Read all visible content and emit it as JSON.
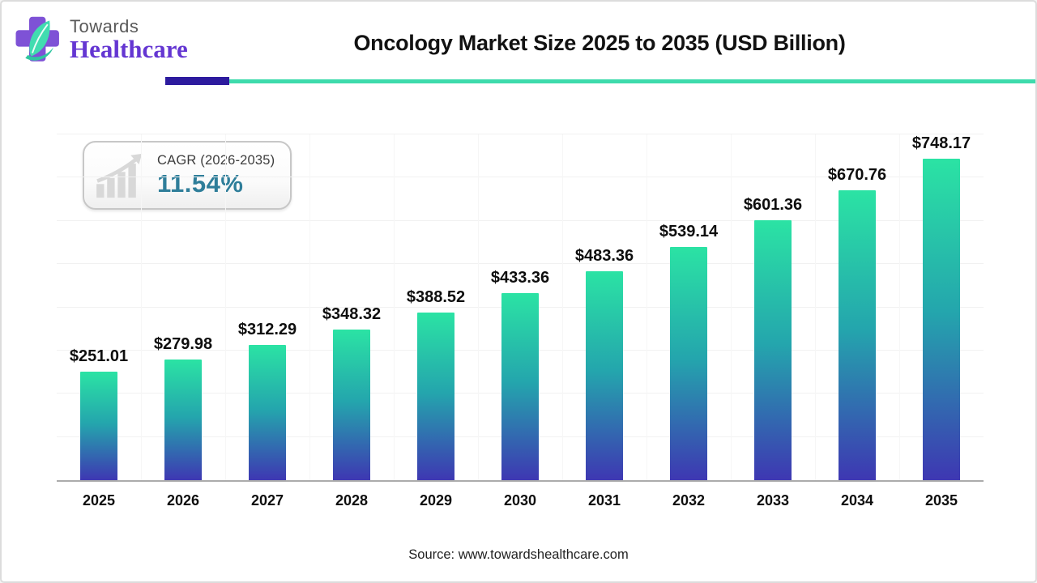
{
  "logo": {
    "brand_top": "Towards",
    "brand_bottom": "Healthcare",
    "cross_color": "#7e52d6",
    "leaf_color": "#41dcb0",
    "swoosh_color": "#2fc6a0"
  },
  "header": {
    "title": "Oncology Market Size 2025 to 2035 (USD Billion)",
    "underline_indigo": "#2d1b9e",
    "underline_teal": "#3edbac"
  },
  "cagr_badge": {
    "label": "CAGR (2026-2035)",
    "value": "11.54%",
    "value_color": "#2f7e9a",
    "icon": "growth-chart-icon",
    "icon_color": "#d8d8d8"
  },
  "chart_data": {
    "type": "bar",
    "title": "Oncology Market Size 2025 to 2035 (USD Billion)",
    "unit": "USD Billion",
    "categories": [
      "2025",
      "2026",
      "2027",
      "2028",
      "2029",
      "2030",
      "2031",
      "2032",
      "2033",
      "2034",
      "2035"
    ],
    "values": [
      251.01,
      279.98,
      312.29,
      348.32,
      388.52,
      433.36,
      483.36,
      539.14,
      601.36,
      670.76,
      748.17
    ],
    "display_labels": [
      "$251.01",
      "$279.98",
      "$312.29",
      "$348.32",
      "$388.52",
      "$433.36",
      "$483.36",
      "$539.14",
      "$601.36",
      "$670.76",
      "$748.17"
    ],
    "xlabel": "",
    "ylabel": "",
    "ylim": [
      0,
      800
    ],
    "gridline_step": 100,
    "grid": true,
    "legend": false,
    "bar_gradient": {
      "top": "#2be3a4",
      "mid": "#24a5ad",
      "bottom": "#3e37b2"
    }
  },
  "footer": {
    "source": "Source: www.towardshealthcare.com"
  }
}
